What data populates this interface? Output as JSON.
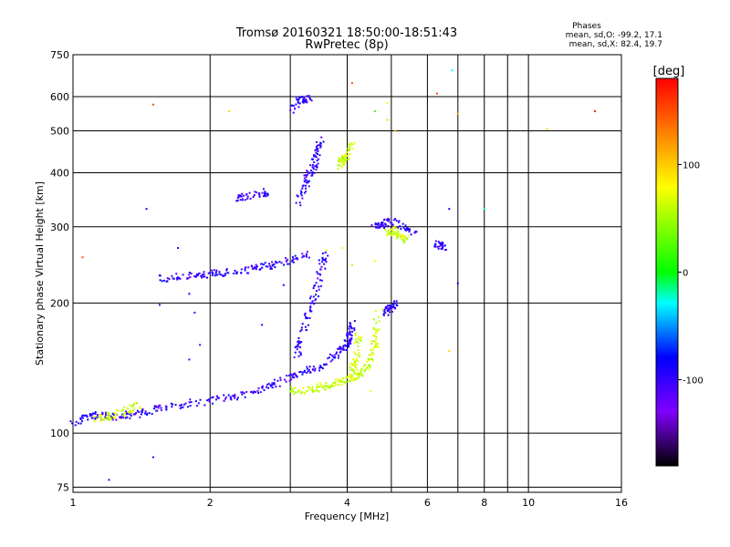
{
  "chart_data": {
    "type": "scatter",
    "title": "Tromsø 20160321 18:50:00-18:51:43",
    "subtitle": "RwPretec (8p)",
    "xlabel": "Frequency [MHz]",
    "ylabel": "Stationary phase Virtual Height [km]",
    "xscale": "log",
    "yscale": "log",
    "xlim": [
      1,
      16
    ],
    "ylim": [
      73,
      750
    ],
    "x_ticks": [
      1,
      2,
      4,
      6,
      8,
      10,
      16
    ],
    "x_tick_labels": [
      "1",
      "2",
      "4",
      "6",
      "8",
      "10",
      "16"
    ],
    "x_gridlines": [
      1,
      2,
      3,
      4,
      5,
      6,
      7,
      8,
      9,
      10,
      16
    ],
    "y_ticks": [
      75,
      100,
      200,
      300,
      400,
      500,
      600,
      750
    ],
    "y_tick_labels": [
      "75",
      "100",
      "200",
      "300",
      "400",
      "500",
      "600",
      "750"
    ],
    "grid": true,
    "stats": {
      "heading": "Phases",
      "line1": "mean, sd,O: -99.2, 17.1",
      "line2": "mean, sd,X:  82.4, 19.7"
    },
    "colorbar": {
      "label": "[deg]",
      "range": [
        -180,
        180
      ],
      "tick_values": [
        100,
        0,
        -100
      ],
      "tick_labels": [
        "100",
        "0",
        "-100"
      ],
      "colors": [
        "#ff0000",
        "#ff8000",
        "#ffff00",
        "#00ff00",
        "#00ffff",
        "#0000ff",
        "#8000ff",
        "#000000"
      ]
    },
    "series": [
      {
        "mode": "O",
        "color_phase": -100,
        "segments": [
          {
            "x": [
              1.0,
              1.05,
              1.1,
              1.15,
              1.2,
              1.3,
              1.4,
              1.5,
              1.6,
              1.8,
              2.0,
              2.2,
              2.4,
              2.6,
              2.8,
              3.0,
              3.2,
              3.4,
              3.6,
              3.8,
              4.0,
              4.05,
              4.1
            ],
            "y": [
              106,
              108,
              110,
              110,
              109,
              110,
              111,
              113,
              115,
              117,
              119,
              121,
              123,
              126,
              130,
              135,
              139,
              141,
              145,
              152,
              160,
              170,
              180
            ]
          },
          {
            "x": [
              3.1,
              3.2,
              3.3,
              3.4,
              3.5,
              3.6
            ],
            "y": [
              150,
              170,
              190,
              210,
              240,
              260
            ]
          },
          {
            "x": [
              1.55,
              1.7,
              1.9,
              2.1,
              2.3,
              2.5,
              2.7,
              2.9,
              3.1,
              3.3
            ],
            "y": [
              228,
              230,
              232,
              234,
              237,
              240,
              244,
              248,
              253,
              260
            ]
          },
          {
            "x": [
              2.3,
              2.5,
              2.7
            ],
            "y": [
              350,
              355,
              362
            ]
          },
          {
            "x": [
              3.1,
              3.2,
              3.3,
              3.4,
              3.45,
              3.5
            ],
            "y": [
              340,
              365,
              395,
              420,
              450,
              480
            ]
          },
          {
            "x": [
              3.0,
              3.15,
              3.3
            ],
            "y": [
              560,
              590,
              595
            ]
          },
          {
            "x": [
              4.6,
              4.8,
              5.0,
              5.3,
              5.6
            ],
            "y": [
              300,
              305,
              310,
              300,
              290
            ]
          },
          {
            "x": [
              4.85,
              5.0,
              5.1
            ],
            "y": [
              190,
              195,
              200
            ]
          },
          {
            "x": [
              6.3,
              6.5
            ],
            "y": [
              275,
              270
            ]
          }
        ]
      },
      {
        "mode": "X",
        "color_phase": 80,
        "segments": [
          {
            "x": [
              3.0,
              3.2,
              3.4,
              3.6,
              3.8,
              4.0,
              4.2,
              4.4,
              4.5,
              4.6,
              4.65,
              4.7
            ],
            "y": [
              125,
              126,
              127,
              129,
              131,
              133,
              136,
              142,
              150,
              160,
              175,
              195
            ]
          },
          {
            "x": [
              4.1,
              4.2,
              4.25
            ],
            "y": [
              140,
              150,
              170
            ]
          },
          {
            "x": [
              4.9,
              5.0,
              5.2,
              5.4
            ],
            "y": [
              290,
              295,
              285,
              280
            ]
          },
          {
            "x": [
              1.1,
              1.2,
              1.3,
              1.4
            ],
            "y": [
              108,
              109,
              112,
              117
            ]
          },
          {
            "x": [
              3.8,
              3.9,
              4.0,
              4.1
            ],
            "y": [
              410,
              430,
              440,
              470
            ]
          }
        ]
      }
    ],
    "scattered_points": [
      {
        "x": 1.5,
        "y": 575,
        "phase": 150
      },
      {
        "x": 2.2,
        "y": 555,
        "phase": 110
      },
      {
        "x": 4.1,
        "y": 645,
        "phase": 150
      },
      {
        "x": 6.3,
        "y": 610,
        "phase": 150
      },
      {
        "x": 6.8,
        "y": 690,
        "phase": -30
      },
      {
        "x": 7.0,
        "y": 548,
        "phase": 120
      },
      {
        "x": 11.0,
        "y": 505,
        "phase": 110
      },
      {
        "x": 14.0,
        "y": 555,
        "phase": 170
      },
      {
        "x": 4.6,
        "y": 555,
        "phase": 20
      },
      {
        "x": 4.9,
        "y": 580,
        "phase": 100
      },
      {
        "x": 5.1,
        "y": 500,
        "phase": 120
      },
      {
        "x": 4.9,
        "y": 530,
        "phase": 110
      },
      {
        "x": 3.6,
        "y": 265,
        "phase": 100
      },
      {
        "x": 3.9,
        "y": 268,
        "phase": 100
      },
      {
        "x": 6.7,
        "y": 330,
        "phase": -90
      },
      {
        "x": 8.0,
        "y": 330,
        "phase": -20
      },
      {
        "x": 1.45,
        "y": 330,
        "phase": -90
      },
      {
        "x": 1.05,
        "y": 255,
        "phase": 150
      },
      {
        "x": 1.7,
        "y": 268,
        "phase": -100
      },
      {
        "x": 1.8,
        "y": 210,
        "phase": -90
      },
      {
        "x": 1.55,
        "y": 198,
        "phase": -110
      },
      {
        "x": 1.85,
        "y": 190,
        "phase": -110
      },
      {
        "x": 1.9,
        "y": 160,
        "phase": -110
      },
      {
        "x": 1.8,
        "y": 148,
        "phase": -110
      },
      {
        "x": 2.6,
        "y": 178,
        "phase": -90
      },
      {
        "x": 2.9,
        "y": 220,
        "phase": -90
      },
      {
        "x": 7.0,
        "y": 222,
        "phase": -90
      },
      {
        "x": 6.7,
        "y": 155,
        "phase": 110
      },
      {
        "x": 1.2,
        "y": 78,
        "phase": -100
      },
      {
        "x": 1.5,
        "y": 88,
        "phase": -100
      },
      {
        "x": 4.1,
        "y": 245,
        "phase": 110
      },
      {
        "x": 4.6,
        "y": 250,
        "phase": 90
      },
      {
        "x": 4.5,
        "y": 125,
        "phase": 90
      }
    ]
  }
}
